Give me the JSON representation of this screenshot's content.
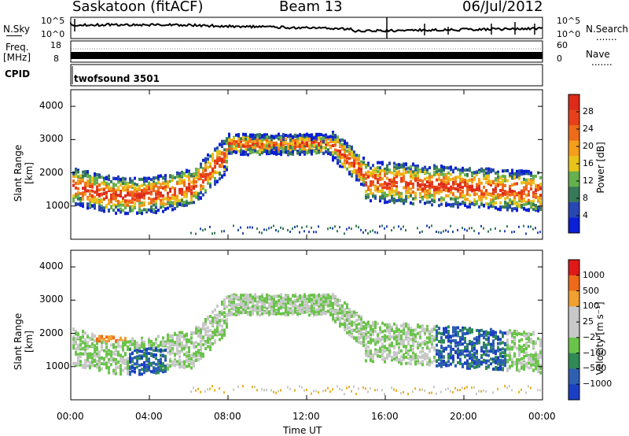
{
  "header": {
    "station": "Saskatoon (fitACF)",
    "beam": "Beam 13",
    "date": "06/Jul/2012"
  },
  "panels": {
    "nsky_label": "N.Sky",
    "nsearch_label": "N.Search",
    "nsky_ticks": [
      "10^5",
      "10^0"
    ],
    "nsearch_ticks": [
      "10^5",
      "10^0"
    ],
    "freq_label": "Freq.",
    "freq_unit": "[MHz]",
    "freq_ticks": [
      "18",
      "8"
    ],
    "nave_label": "Nave",
    "nave_ticks": [
      "60",
      "0"
    ],
    "cpid_label": "CPID",
    "cpid_value": "twofsound 3501",
    "dots": "......."
  },
  "chart_data": [
    {
      "type": "heatmap",
      "name": "power",
      "ylabel": "Slant Range [km]",
      "yticks": [
        "4000",
        "3000",
        "2000",
        "1000"
      ],
      "ylim": [
        0,
        4500
      ],
      "colorbar_label": "Power [dB]",
      "colorbar_ticks": [
        "28",
        "24",
        "20",
        "16",
        "12",
        "8",
        "4"
      ],
      "colors": [
        "#0a1fd6",
        "#2846b4",
        "#377a5a",
        "#66b04d",
        "#e8c41a",
        "#f59e1c",
        "#ee6b1a",
        "#e8401a",
        "#dd2a1a"
      ]
    },
    {
      "type": "heatmap",
      "name": "velocity",
      "ylabel": "Slant Range [km]",
      "yticks": [
        "4000",
        "3000",
        "2000",
        "1000"
      ],
      "ylim": [
        0,
        4500
      ],
      "colorbar_label": "Velocity [m s⁻¹]",
      "colorbar_ticks": [
        "1000",
        "500",
        "100",
        "25",
        "−25",
        "−100",
        "−500",
        "−1000"
      ],
      "colors": [
        "#1b3fc4",
        "#2e5fb0",
        "#2f8a55",
        "#6ac44a",
        "#c8c8c8",
        "#c8c8c8",
        "#f0a030",
        "#ee6a1a",
        "#e01818"
      ]
    }
  ],
  "xaxis": {
    "ticks": [
      "00:00",
      "04:00",
      "08:00",
      "12:00",
      "16:00",
      "20:00",
      "00:00"
    ],
    "label": "Time UT"
  }
}
